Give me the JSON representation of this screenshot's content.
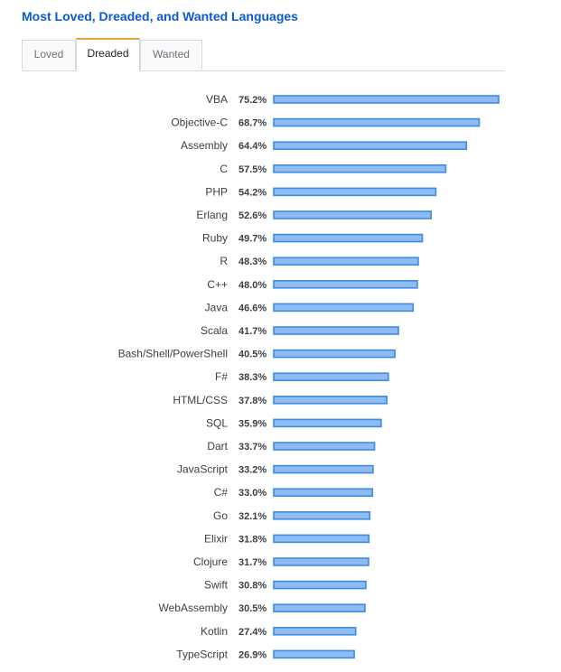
{
  "title": "Most Loved, Dreaded, and Wanted Languages",
  "tabs": [
    {
      "label": "Loved",
      "active": false
    },
    {
      "label": "Dreaded",
      "active": true
    },
    {
      "label": "Wanted",
      "active": false
    }
  ],
  "colors": {
    "title": "#0a5ad4",
    "bar_fill": "#8ebcf2",
    "bar_stroke": "#3f8be0",
    "active_tab_accent": "#e1a63b"
  },
  "chart_data": {
    "type": "bar",
    "orientation": "horizontal",
    "title": "Most Loved, Dreaded, and Wanted Languages",
    "series_name": "Dreaded",
    "value_suffix": "%",
    "xlim": [
      0,
      75.2
    ],
    "categories": [
      "VBA",
      "Objective-C",
      "Assembly",
      "C",
      "PHP",
      "Erlang",
      "Ruby",
      "R",
      "C++",
      "Java",
      "Scala",
      "Bash/Shell/PowerShell",
      "F#",
      "HTML/CSS",
      "SQL",
      "Dart",
      "JavaScript",
      "C#",
      "Go",
      "Elixir",
      "Clojure",
      "Swift",
      "WebAssembly",
      "Kotlin",
      "TypeScript"
    ],
    "values": [
      75.2,
      68.7,
      64.4,
      57.5,
      54.2,
      52.6,
      49.7,
      48.3,
      48.0,
      46.6,
      41.7,
      40.5,
      38.3,
      37.8,
      35.9,
      33.7,
      33.2,
      33.0,
      32.1,
      31.8,
      31.7,
      30.8,
      30.5,
      27.4,
      26.9
    ],
    "labels": [
      "75.2%",
      "68.7%",
      "64.4%",
      "57.5%",
      "54.2%",
      "52.6%",
      "49.7%",
      "48.3%",
      "48.0%",
      "46.6%",
      "41.7%",
      "40.5%",
      "38.3%",
      "37.8%",
      "35.9%",
      "33.7%",
      "33.2%",
      "33.0%",
      "32.1%",
      "31.8%",
      "31.7%",
      "30.8%",
      "30.5%",
      "27.4%",
      "26.9%"
    ]
  }
}
